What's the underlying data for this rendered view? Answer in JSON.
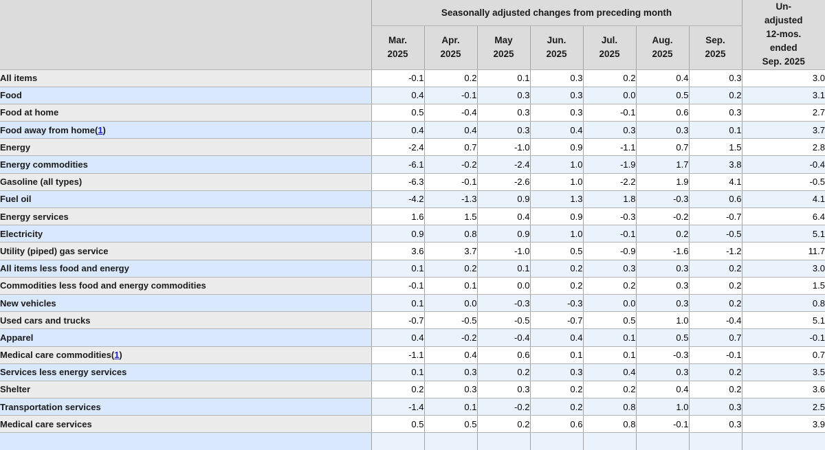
{
  "table": {
    "title_header": "Seasonally adjusted changes from preceding month",
    "unadjusted_header": "Un-\nadjusted\n12-mos.\nended\nSep. 2025",
    "month_headers": [
      "Mar.\n2025",
      "Apr.\n2025",
      "May\n2025",
      "Jun.\n2025",
      "Jul.\n2025",
      "Aug.\n2025",
      "Sep.\n2025"
    ],
    "rows": [
      {
        "label": "All items",
        "indent": 0,
        "values": [
          "-0.1",
          "0.2",
          "0.1",
          "0.3",
          "0.2",
          "0.4",
          "0.3",
          "3.0"
        ]
      },
      {
        "label": "Food",
        "indent": 1,
        "values": [
          "0.4",
          "-0.1",
          "0.3",
          "0.3",
          "0.0",
          "0.5",
          "0.2",
          "3.1"
        ]
      },
      {
        "label": "Food at home",
        "indent": 2,
        "values": [
          "0.5",
          "-0.4",
          "0.3",
          "0.3",
          "-0.1",
          "0.6",
          "0.3",
          "2.7"
        ]
      },
      {
        "label": "Food away from home",
        "indent": 2,
        "footnote": "1",
        "values": [
          "0.4",
          "0.4",
          "0.3",
          "0.4",
          "0.3",
          "0.3",
          "0.1",
          "3.7"
        ]
      },
      {
        "label": "Energy",
        "indent": 1,
        "values": [
          "-2.4",
          "0.7",
          "-1.0",
          "0.9",
          "-1.1",
          "0.7",
          "1.5",
          "2.8"
        ]
      },
      {
        "label": "Energy commodities",
        "indent": 2,
        "values": [
          "-6.1",
          "-0.2",
          "-2.4",
          "1.0",
          "-1.9",
          "1.7",
          "3.8",
          "-0.4"
        ]
      },
      {
        "label": "Gasoline (all types)",
        "indent": 3,
        "values": [
          "-6.3",
          "-0.1",
          "-2.6",
          "1.0",
          "-2.2",
          "1.9",
          "4.1",
          "-0.5"
        ]
      },
      {
        "label": "Fuel oil",
        "indent": 3,
        "values": [
          "-4.2",
          "-1.3",
          "0.9",
          "1.3",
          "1.8",
          "-0.3",
          "0.6",
          "4.1"
        ]
      },
      {
        "label": "Energy services",
        "indent": 2,
        "values": [
          "1.6",
          "1.5",
          "0.4",
          "0.9",
          "-0.3",
          "-0.2",
          "-0.7",
          "6.4"
        ]
      },
      {
        "label": "Electricity",
        "indent": 3,
        "values": [
          "0.9",
          "0.8",
          "0.9",
          "1.0",
          "-0.1",
          "0.2",
          "-0.5",
          "5.1"
        ]
      },
      {
        "label": "Utility (piped) gas service",
        "indent": 3,
        "values": [
          "3.6",
          "3.7",
          "-1.0",
          "0.5",
          "-0.9",
          "-1.6",
          "-1.2",
          "11.7"
        ]
      },
      {
        "label": "All items less food and energy",
        "indent": 1,
        "values": [
          "0.1",
          "0.2",
          "0.1",
          "0.2",
          "0.3",
          "0.3",
          "0.2",
          "3.0"
        ]
      },
      {
        "label": "Commodities less food and energy commodities",
        "indent": 2,
        "values": [
          "-0.1",
          "0.1",
          "0.0",
          "0.2",
          "0.2",
          "0.3",
          "0.2",
          "1.5"
        ]
      },
      {
        "label": "New vehicles",
        "indent": 3,
        "values": [
          "0.1",
          "0.0",
          "-0.3",
          "-0.3",
          "0.0",
          "0.3",
          "0.2",
          "0.8"
        ]
      },
      {
        "label": "Used cars and trucks",
        "indent": 3,
        "values": [
          "-0.7",
          "-0.5",
          "-0.5",
          "-0.7",
          "0.5",
          "1.0",
          "-0.4",
          "5.1"
        ]
      },
      {
        "label": "Apparel",
        "indent": 3,
        "values": [
          "0.4",
          "-0.2",
          "-0.4",
          "0.4",
          "0.1",
          "0.5",
          "0.7",
          "-0.1"
        ]
      },
      {
        "label": "Medical care commodities",
        "indent": 3,
        "footnote": "1",
        "values": [
          "-1.1",
          "0.4",
          "0.6",
          "0.1",
          "0.1",
          "-0.3",
          "-0.1",
          "0.7"
        ]
      },
      {
        "label": "Services less energy services",
        "indent": 2,
        "values": [
          "0.1",
          "0.3",
          "0.2",
          "0.3",
          "0.4",
          "0.3",
          "0.2",
          "3.5"
        ]
      },
      {
        "label": "Shelter",
        "indent": 3,
        "values": [
          "0.2",
          "0.3",
          "0.3",
          "0.2",
          "0.2",
          "0.4",
          "0.2",
          "3.6"
        ]
      },
      {
        "label": "Transportation services",
        "indent": 3,
        "values": [
          "-1.4",
          "0.1",
          "-0.2",
          "0.2",
          "0.8",
          "1.0",
          "0.3",
          "2.5"
        ]
      },
      {
        "label": "Medical care services",
        "indent": 3,
        "values": [
          "0.5",
          "0.5",
          "0.2",
          "0.6",
          "0.8",
          "-0.1",
          "0.3",
          "3.9"
        ]
      }
    ],
    "colors": {
      "header_bg": "#dcdcdc",
      "gray_row_label_bg": "#ececec",
      "gray_row_data_bg": "#ffffff",
      "blue_row_label_bg": "#d9e8fc",
      "blue_row_data_bg": "#eaf2fc",
      "footnote_link": "#2222cc",
      "border": "#a3a3a3"
    }
  }
}
